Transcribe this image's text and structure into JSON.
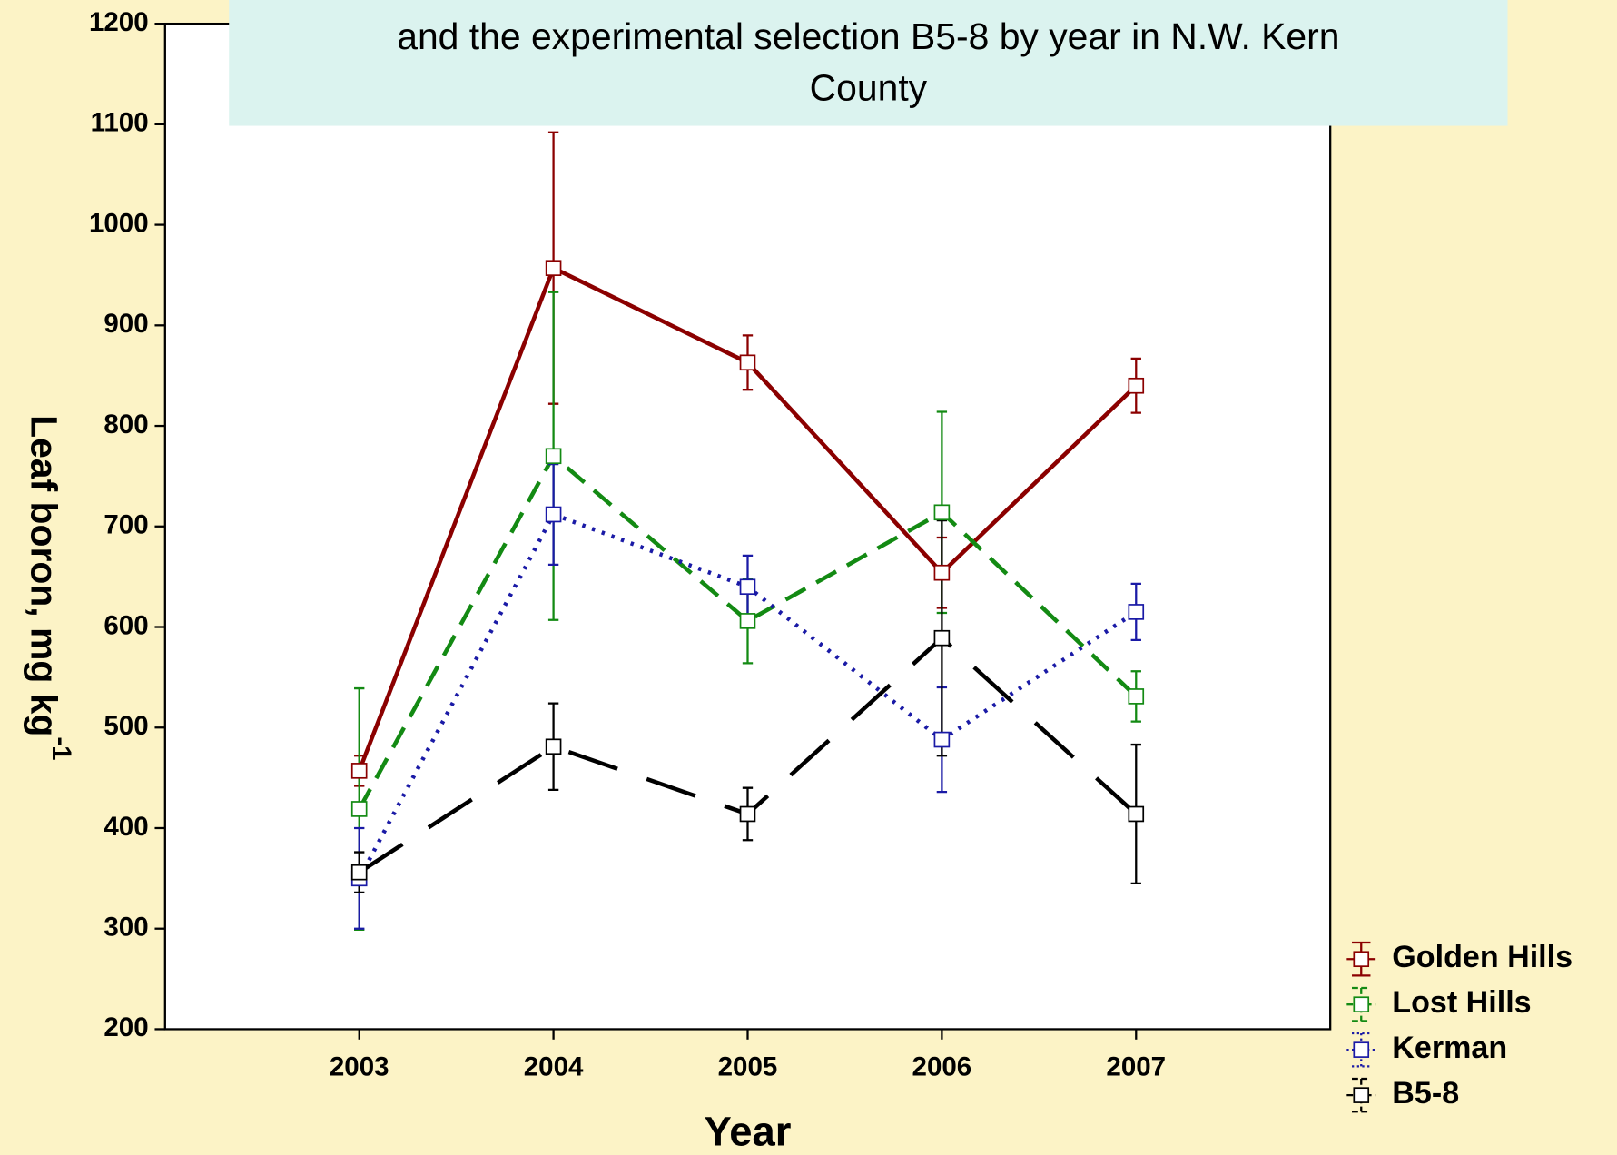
{
  "chart_data": {
    "type": "line",
    "title": [
      "and the experimental selection B5-8 by year in N.W. Kern",
      "County"
    ],
    "xlabel": "Year",
    "ylabel": "Leaf boron, mg kg",
    "ylabel_superscript": "-1",
    "x": [
      2003,
      2004,
      2005,
      2006,
      2007
    ],
    "xlim": [
      2002,
      2008
    ],
    "xticks": [
      2003,
      2004,
      2005,
      2006,
      2007
    ],
    "ylim": [
      200,
      1200
    ],
    "yticks": [
      200,
      300,
      400,
      500,
      600,
      700,
      800,
      900,
      1000,
      1100,
      1200
    ],
    "legend": "bottom-right-outside",
    "series": [
      {
        "name": "Golden Hills",
        "color": "#8b0000",
        "dash": "solid",
        "values": [
          457,
          957,
          863,
          654,
          840
        ],
        "errors": [
          15,
          135,
          27,
          35,
          27
        ]
      },
      {
        "name": "Lost Hills",
        "color": "#138a13",
        "dash": "dashed",
        "values": [
          419,
          770,
          606,
          714,
          531
        ],
        "errors": [
          120,
          163,
          42,
          100,
          25
        ]
      },
      {
        "name": "Kerman",
        "color": "#1a1aa6",
        "dash": "dotted",
        "values": [
          350,
          712,
          640,
          488,
          615
        ],
        "errors": [
          50,
          50,
          31,
          52,
          28
        ]
      },
      {
        "name": "B5-8",
        "color": "#000000",
        "dash": "longdash",
        "values": [
          356,
          481,
          414,
          589,
          414
        ],
        "errors": [
          20,
          43,
          26,
          117,
          69
        ]
      }
    ]
  }
}
